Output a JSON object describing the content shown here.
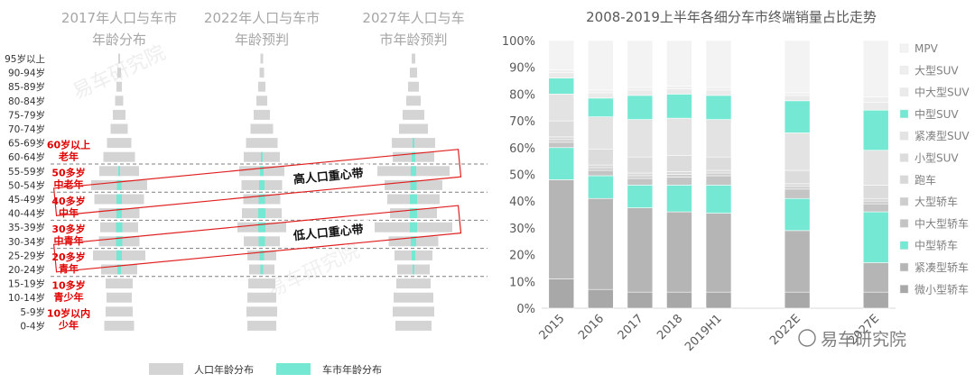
{
  "chart_data": [
    {
      "type": "bar",
      "subtype": "population-pyramid",
      "panel_titles": [
        [
          "2017年人口与车市",
          "年龄分布"
        ],
        [
          "2022年人口与车市",
          "年龄预判"
        ],
        [
          "2027年人口与车",
          "市年龄预判"
        ]
      ],
      "categories": [
        "95岁以上",
        "90-94岁",
        "85-89岁",
        "80-84岁",
        "75-79岁",
        "70-74岁",
        "65-69岁",
        "60-64岁",
        "55-59岁",
        "50-54岁",
        "45-49岁",
        "40-44岁",
        "35-39岁",
        "30-34岁",
        "25-29岁",
        "20-24岁",
        "15-19岁",
        "10-14岁",
        "5-9岁",
        "0-4岁"
      ],
      "series": [
        {
          "name": "人口年龄分布",
          "color": "#d4d4d4",
          "panels": [
            [
              2,
              4,
              6,
              9,
              14,
              19,
              27,
              35,
              44,
              62,
              55,
              45,
              42,
              45,
              58,
              40,
              30,
              28,
              30,
              33
            ],
            [
              3,
              5,
              8,
              12,
              18,
              25,
              35,
              40,
              50,
              45,
              41,
              44,
              54,
              40,
              32,
              28,
              30,
              32,
              34,
              32
            ],
            [
              4,
              8,
              12,
              16,
              24,
              32,
              48,
              46,
              80,
              64,
              58,
              52,
              86,
              55,
              42,
              36,
              38,
              44,
              46,
              40
            ]
          ]
        },
        {
          "name": "车市年龄分布",
          "color": "#74e8d2",
          "panels": [
            [
              0,
              0,
              0,
              0,
              0,
              0,
              0,
              0,
              2,
              5,
              6,
              6,
              7,
              7,
              6,
              4,
              0,
              0,
              0,
              0
            ],
            [
              0,
              0,
              0,
              0,
              0,
              0,
              0,
              2,
              4,
              6,
              7,
              8,
              8,
              7,
              5,
              3,
              0,
              0,
              0,
              0
            ],
            [
              0,
              0,
              0,
              0,
              0,
              0,
              2,
              4,
              6,
              7,
              8,
              8,
              8,
              6,
              4,
              2,
              0,
              0,
              0,
              0
            ]
          ]
        }
      ],
      "group_labels": [
        {
          "text": [
            "60岁以上",
            "老年"
          ],
          "rows": [
            6,
            7
          ]
        },
        {
          "text": [
            "50多岁",
            "中老年"
          ],
          "rows": [
            8,
            9
          ]
        },
        {
          "text": [
            "40多岁",
            "中年"
          ],
          "rows": [
            10,
            11
          ]
        },
        {
          "text": [
            "30多岁",
            "中青年"
          ],
          "rows": [
            12,
            13
          ]
        },
        {
          "text": [
            "20多岁",
            "青年"
          ],
          "rows": [
            14,
            15
          ]
        },
        {
          "text": [
            "10多岁",
            "青少年"
          ],
          "rows": [
            16,
            17
          ]
        },
        {
          "text": [
            "10岁以内",
            "少年"
          ],
          "rows": [
            18,
            19
          ]
        }
      ],
      "annotations": [
        "高人口重心带",
        "低人口重心带"
      ],
      "legend": [
        "人口年龄分布",
        "车市年龄分布"
      ],
      "legend_position": "bottom"
    },
    {
      "type": "bar",
      "subtype": "stacked-percent",
      "title": "2008-2019上半年各细分车市终端销量占比走势",
      "categories": [
        "2015",
        "2016",
        "2017",
        "2018",
        "2019H1",
        "",
        "2022E",
        "",
        "2027E"
      ],
      "ylim": [
        0,
        100
      ],
      "yticks": [
        "0%",
        "10%",
        "20%",
        "30%",
        "40%",
        "50%",
        "60%",
        "70%",
        "80%",
        "90%",
        "100%"
      ],
      "legend_position": "right",
      "series": [
        {
          "name": "微小型轿车",
          "color": "#a8a8a8",
          "values": [
            11,
            7,
            6,
            6,
            6,
            null,
            6,
            null,
            6
          ]
        },
        {
          "name": "紧凑型轿车",
          "color": "#b5b5b5",
          "values": [
            37,
            34,
            31.5,
            30,
            29.5,
            null,
            23,
            null,
            11
          ]
        },
        {
          "name": "中型轿车",
          "color": "#74e8d2",
          "values": [
            12,
            8.5,
            8.5,
            10,
            10.5,
            null,
            12,
            null,
            19
          ]
        },
        {
          "name": "中大型轿车",
          "color": "#c4c4c4",
          "values": [
            2,
            2,
            2.5,
            3,
            3.5,
            null,
            3.5,
            null,
            3
          ]
        },
        {
          "name": "大型轿车",
          "color": "#cdcdcd",
          "values": [
            1,
            1,
            1,
            1,
            1,
            null,
            1,
            null,
            1
          ]
        },
        {
          "name": "跑车",
          "color": "#d8d8d8",
          "values": [
            1,
            1,
            1,
            1,
            1,
            null,
            1,
            null,
            1
          ]
        },
        {
          "name": "小型SUV",
          "color": "#dcdcdc",
          "values": [
            6,
            6,
            6,
            6,
            5,
            null,
            5,
            null,
            5
          ]
        },
        {
          "name": "紧凑型SUV",
          "color": "#e3e3e3",
          "values": [
            10,
            12,
            14,
            14,
            14,
            null,
            14,
            null,
            13
          ]
        },
        {
          "name": "中型SUV",
          "color": "#74e8d2",
          "values": [
            6,
            7,
            9,
            9,
            9,
            null,
            12,
            null,
            15
          ]
        },
        {
          "name": "中大型SUV",
          "color": "#eaeaea",
          "values": [
            2,
            2,
            2,
            2,
            2,
            null,
            2,
            null,
            3
          ]
        },
        {
          "name": "大型SUV",
          "color": "#eeeeee",
          "values": [
            1,
            1,
            1,
            1,
            1,
            null,
            1,
            null,
            2
          ]
        },
        {
          "name": "MPV",
          "color": "#f3f3f3",
          "values": [
            11,
            18.5,
            17.5,
            17,
            17.5,
            null,
            19.5,
            null,
            21
          ]
        }
      ],
      "legend_order": [
        "MPV",
        "大型SUV",
        "中大型SUV",
        "中型SUV",
        "紧凑型SUV",
        "小型SUV",
        "跑车",
        "大型轿车",
        "中大型轿车",
        "中型轿车",
        "紧凑型轿车",
        "微小型轿车"
      ]
    }
  ],
  "watermark": {
    "brand": "易车研究院"
  }
}
